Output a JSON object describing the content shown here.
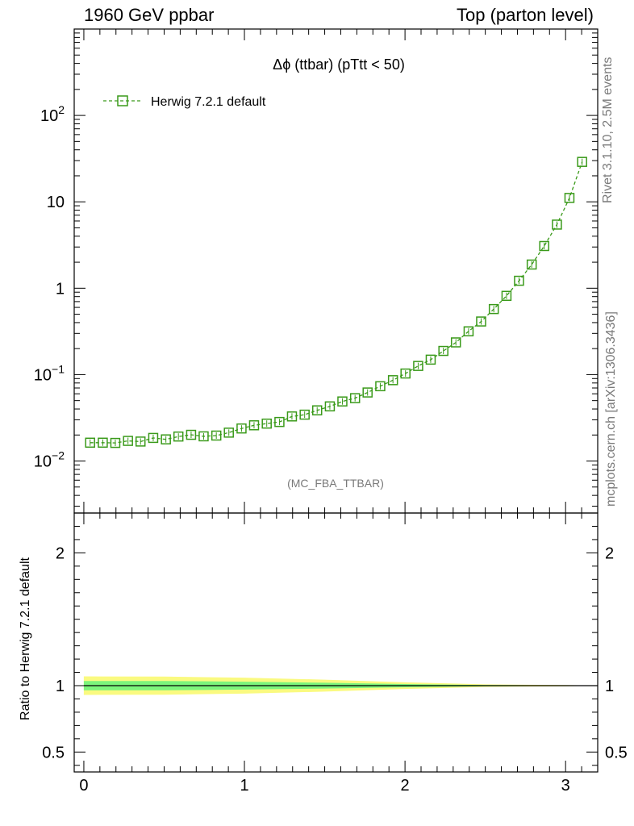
{
  "header": {
    "left": "1960 GeV ppbar",
    "right": "Top (parton level)"
  },
  "side": {
    "rivet": "Rivet 3.1.10,  2.5M events",
    "mcplots": "mcplots.cern.ch [arXiv:1306.3436]"
  },
  "plot": {
    "title_symbol": "Δϕ",
    "title_rest": " (ttbar) (pTtt < 50)",
    "legend_label": "Herwig 7.2.1 default",
    "analysis_tag": "(MC_FBA_TTBAR)",
    "ratio_ylabel": "Ratio to Herwig 7.2.1 default"
  },
  "colors": {
    "series": "#3a9a1a",
    "band_inner": "#7cf57c",
    "band_outer": "#fafa80",
    "gray_text": "#7a7a7a"
  },
  "chart_data": {
    "type": "line",
    "x_range": [
      -0.06,
      3.2
    ],
    "main_yscale": "log",
    "main_ylim": [
      0.0025,
      1000
    ],
    "main_yticks": [
      "10^-2",
      "10^-1",
      "1",
      "10",
      "10^2"
    ],
    "ratio_ylim": [
      0.35,
      2.3
    ],
    "ratio_yticks": [
      "0.5",
      "1",
      "2"
    ],
    "xticks": [
      "0",
      "1",
      "2",
      "3"
    ],
    "series": [
      {
        "name": "Herwig 7.2.1 default",
        "x": [
          0.039,
          0.118,
          0.196,
          0.275,
          0.353,
          0.432,
          0.511,
          0.589,
          0.668,
          0.746,
          0.825,
          0.903,
          0.982,
          1.06,
          1.139,
          1.218,
          1.296,
          1.375,
          1.453,
          1.532,
          1.61,
          1.689,
          1.767,
          1.846,
          1.925,
          2.003,
          2.082,
          2.16,
          2.239,
          2.317,
          2.396,
          2.474,
          2.553,
          2.632,
          2.71,
          2.789,
          2.867,
          2.946,
          3.024,
          3.103
        ],
        "y": [
          0.0163,
          0.0163,
          0.0162,
          0.0171,
          0.0168,
          0.0185,
          0.0178,
          0.0192,
          0.0201,
          0.0193,
          0.0197,
          0.0213,
          0.0238,
          0.0259,
          0.0271,
          0.0283,
          0.0328,
          0.0344,
          0.0386,
          0.0429,
          0.0489,
          0.0534,
          0.0621,
          0.0734,
          0.0862,
          0.103,
          0.126,
          0.149,
          0.188,
          0.236,
          0.317,
          0.412,
          0.574,
          0.816,
          1.22,
          1.88,
          3.08,
          5.45,
          11.1,
          29.0
        ]
      }
    ],
    "ratio_band": {
      "x": [
        0.0,
        0.5,
        1.0,
        1.5,
        2.0,
        2.5,
        3.0,
        3.15
      ],
      "inner_half_width": [
        0.035,
        0.035,
        0.03,
        0.022,
        0.012,
        0.005,
        0.002,
        0.001
      ],
      "outer_half_width": [
        0.07,
        0.068,
        0.06,
        0.045,
        0.025,
        0.01,
        0.004,
        0.002
      ]
    }
  }
}
